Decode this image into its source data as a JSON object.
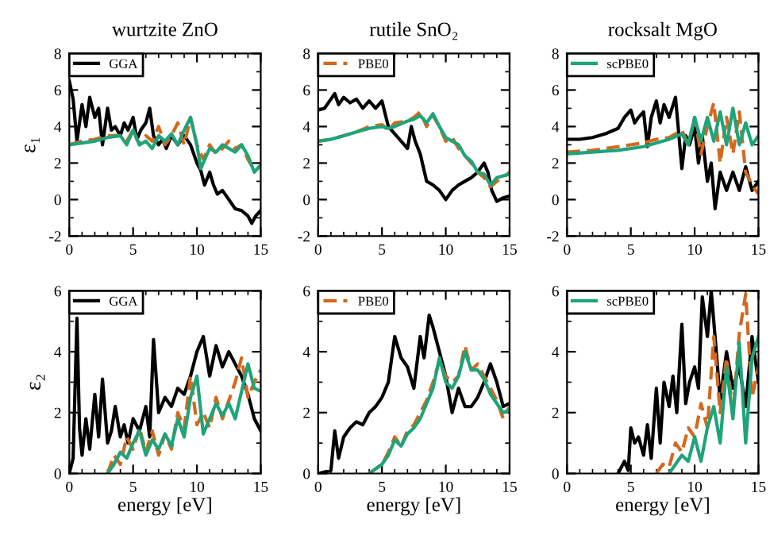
{
  "chart_data": [
    {
      "type": "line",
      "title": "wurtzite ZnO",
      "ylabel": "ε₁",
      "xlim": [
        0,
        15
      ],
      "ylim": [
        -2,
        8
      ],
      "xticks": [
        0,
        5,
        10,
        15
      ],
      "yticks": [
        -2,
        0,
        2,
        4,
        6,
        8
      ],
      "legend": "top left",
      "grid": false,
      "series": [
        {
          "name": "GGA",
          "color": "#000000",
          "line_style": "solid",
          "x": [
            0,
            0.3,
            0.6,
            1,
            1.3,
            1.6,
            2,
            2.3,
            2.6,
            3,
            3.3,
            3.6,
            4,
            4.3,
            4.6,
            5,
            5.3,
            5.6,
            6,
            6.3,
            6.6,
            7,
            7.3,
            7.6,
            8,
            8.5,
            9,
            9.5,
            10,
            10.3,
            10.6,
            11,
            11.3,
            11.6,
            12,
            12.5,
            13,
            13.5,
            14,
            14.3,
            14.6,
            15
          ],
          "values": [
            6.5,
            5.5,
            3.2,
            5.2,
            4.0,
            5.6,
            4.5,
            5.0,
            3.0,
            5.0,
            3.8,
            4.0,
            3.5,
            4.2,
            3.8,
            4.5,
            3.3,
            3.8,
            4.2,
            5.0,
            3.5,
            3.0,
            3.3,
            2.8,
            3.5,
            3.0,
            3.5,
            3.0,
            2.0,
            1.6,
            0.8,
            1.5,
            0.8,
            0.3,
            0.5,
            0,
            -0.5,
            -0.6,
            -0.9,
            -1.3,
            -0.9,
            -0.6
          ]
        },
        {
          "color": "#d2691e",
          "line_style": "dashed",
          "x": [
            0,
            1,
            2,
            3,
            4,
            4.5,
            5,
            5.5,
            6,
            6.5,
            7,
            7.5,
            8,
            8.5,
            9,
            9.5,
            10,
            10.5,
            11,
            11.5,
            12,
            12.5,
            13,
            13.5,
            14,
            14.5,
            15
          ],
          "values": [
            3.0,
            3.2,
            3.3,
            3.5,
            3.5,
            3.2,
            3.8,
            3.0,
            3.5,
            3.2,
            4.0,
            3.0,
            3.5,
            4.2,
            3.0,
            4.5,
            3.0,
            2.2,
            3.0,
            2.5,
            2.8,
            3.2,
            2.8,
            3.0,
            2.2,
            1.6,
            1.8
          ]
        },
        {
          "color": "#1fa37a",
          "line_style": "solid",
          "x": [
            0,
            1,
            2,
            3,
            4,
            4.5,
            5,
            5.5,
            6,
            6.5,
            7,
            7.5,
            8,
            8.5,
            9,
            9.5,
            10,
            10.3,
            11,
            11.5,
            12,
            12.5,
            13,
            13.5,
            14,
            14.5,
            15
          ],
          "values": [
            3.0,
            3.1,
            3.2,
            3.4,
            3.5,
            3.0,
            3.8,
            3.0,
            3.2,
            2.8,
            3.5,
            3.2,
            3.6,
            3.0,
            3.8,
            4.5,
            3.0,
            1.7,
            2.8,
            2.6,
            3.0,
            2.8,
            2.6,
            3.0,
            2.4,
            1.5,
            1.9
          ]
        }
      ]
    },
    {
      "type": "line",
      "title": "rutile SnO₂",
      "xlim": [
        0,
        15
      ],
      "ylim": [
        -2,
        8
      ],
      "xticks": [
        0,
        5,
        10,
        15
      ],
      "yticks": [
        -2,
        0,
        2,
        4,
        6,
        8
      ],
      "legend": "top left",
      "grid": false,
      "series": [
        {
          "color": "#000000",
          "line_style": "solid",
          "x": [
            0,
            0.5,
            1,
            1.3,
            1.6,
            2,
            2.5,
            3,
            3.5,
            4,
            4.5,
            5,
            5.5,
            6,
            6.5,
            7,
            7.3,
            7.6,
            8,
            8.5,
            9,
            9.5,
            10,
            10.5,
            11,
            11.5,
            12,
            12.5,
            13,
            13.3,
            13.6,
            14,
            14.5,
            15
          ],
          "values": [
            4.9,
            5.0,
            5.5,
            5.8,
            5.2,
            5.6,
            5.3,
            5.5,
            5.0,
            5.4,
            5.0,
            5.4,
            4.0,
            3.6,
            3.2,
            2.8,
            4.0,
            3.2,
            2.5,
            1.0,
            0.8,
            0.5,
            0,
            0.5,
            0.8,
            1.0,
            1.2,
            1.5,
            2.0,
            1.5,
            0.5,
            -0.1,
            0.1,
            0.2
          ]
        },
        {
          "name": "PBE0",
          "color": "#d2691e",
          "line_style": "dashed",
          "x": [
            0,
            1,
            2,
            3,
            4,
            5,
            5.5,
            6,
            7,
            7.5,
            8,
            8.5,
            9,
            9.5,
            10,
            10.5,
            11,
            11.5,
            12,
            12.5,
            13,
            13.5,
            14,
            14.5,
            15
          ],
          "values": [
            3.2,
            3.3,
            3.5,
            3.7,
            4.0,
            4.1,
            3.8,
            4.2,
            4.3,
            4.5,
            4.8,
            4.0,
            4.6,
            4.0,
            3.2,
            3.4,
            2.8,
            2.4,
            2.0,
            1.5,
            1.2,
            0.7,
            1.0,
            1.2,
            1.5
          ]
        },
        {
          "color": "#1fa37a",
          "line_style": "solid",
          "x": [
            0,
            1,
            2,
            3,
            4,
            5,
            5.5,
            6,
            7,
            7.5,
            8,
            8.5,
            9,
            9.5,
            10,
            10.5,
            11,
            11.5,
            12,
            12.5,
            13,
            13.5,
            14,
            14.5,
            15
          ],
          "values": [
            3.2,
            3.3,
            3.5,
            3.7,
            3.9,
            4.0,
            3.9,
            4.0,
            4.3,
            4.4,
            4.6,
            4.2,
            4.7,
            4.0,
            3.4,
            3.2,
            3.0,
            2.4,
            2.1,
            1.5,
            1.4,
            0.8,
            1.2,
            1.3,
            1.4
          ]
        }
      ]
    },
    {
      "type": "line",
      "title": "rocksalt MgO",
      "xlim": [
        0,
        15
      ],
      "ylim": [
        -2,
        8
      ],
      "xticks": [
        0,
        5,
        10,
        15
      ],
      "yticks": [
        -2,
        0,
        2,
        4,
        6,
        8
      ],
      "legend": "top left",
      "grid": false,
      "series": [
        {
          "color": "#000000",
          "line_style": "solid",
          "x": [
            0,
            1,
            2,
            3,
            4,
            4.5,
            5,
            5.3,
            5.6,
            6,
            6.3,
            6.6,
            7,
            7.3,
            7.6,
            8,
            8.5,
            9,
            9.3,
            9.6,
            10,
            10.3,
            10.6,
            11,
            11.3,
            11.6,
            12,
            12.5,
            13,
            13.5,
            14,
            14.5,
            15
          ],
          "values": [
            3.3,
            3.3,
            3.4,
            3.6,
            3.9,
            4.5,
            4.9,
            4.2,
            4.5,
            4.8,
            2.9,
            4.5,
            5.4,
            4.2,
            5.2,
            4.5,
            5.6,
            1.7,
            3.5,
            3.0,
            4.0,
            2.0,
            3.5,
            1.0,
            2.0,
            -0.5,
            1.5,
            0.5,
            1.5,
            0.5,
            1.8,
            0.5,
            1.0
          ]
        },
        {
          "color": "#d2691e",
          "line_style": "dashed",
          "x": [
            0,
            2,
            4,
            6,
            7,
            8,
            9,
            9.5,
            10,
            10.5,
            11,
            11.5,
            12,
            12.5,
            13,
            13.5,
            14,
            14.5,
            15
          ],
          "values": [
            2.6,
            2.7,
            2.9,
            3.1,
            3.3,
            3.4,
            3.8,
            3.0,
            4.5,
            2.5,
            4.0,
            5.3,
            2.0,
            4.5,
            2.5,
            4.8,
            1.5,
            0.8,
            0.3
          ]
        },
        {
          "name": "scPBE0",
          "color": "#1fa37a",
          "line_style": "solid",
          "x": [
            0,
            2,
            4,
            6,
            8,
            9,
            9.5,
            10,
            10.5,
            11,
            11.5,
            12,
            12.5,
            13,
            13.5,
            14,
            14.5,
            15
          ],
          "values": [
            2.5,
            2.6,
            2.7,
            2.9,
            3.3,
            3.6,
            3.0,
            4.5,
            3.2,
            4.5,
            3.2,
            4.8,
            3.0,
            5.0,
            3.0,
            4.2,
            3.0,
            3.5
          ]
        }
      ]
    },
    {
      "type": "line",
      "xlabel": "energy [eV]",
      "ylabel": "ε₂",
      "xlim": [
        0,
        15
      ],
      "ylim": [
        0,
        6
      ],
      "xticks": [
        0,
        5,
        10,
        15
      ],
      "yticks": [
        0,
        2,
        4,
        6
      ],
      "legend": "top left",
      "grid": false,
      "series": [
        {
          "name": "GGA",
          "color": "#000000",
          "line_style": "solid",
          "x": [
            0,
            0.3,
            0.6,
            0.8,
            1,
            1.3,
            1.6,
            2,
            2.3,
            2.6,
            3,
            3.3,
            3.6,
            4,
            4.3,
            4.6,
            5,
            5.5,
            6,
            6.3,
            6.6,
            7,
            7.5,
            8,
            8.5,
            9,
            9.5,
            10,
            10.5,
            11,
            11.5,
            12,
            12.5,
            13,
            13.5,
            14,
            14.5,
            15
          ],
          "values": [
            0,
            0.5,
            5.1,
            1.5,
            0.6,
            1.8,
            0.8,
            2.6,
            1.2,
            3.1,
            1.0,
            1.4,
            2.2,
            1.2,
            1.6,
            1.0,
            1.8,
            1.4,
            2.2,
            1.2,
            4.4,
            2.0,
            2.5,
            2.2,
            2.8,
            2.6,
            3.2,
            4.0,
            4.5,
            3.2,
            4.2,
            3.5,
            4.0,
            3.6,
            3.2,
            2.6,
            1.8,
            1.4
          ]
        },
        {
          "color": "#d2691e",
          "line_style": "dashed",
          "x": [
            3,
            3.5,
            4,
            4.5,
            5,
            5.5,
            6,
            6.5,
            7,
            7.5,
            8,
            8.5,
            9,
            9.5,
            10,
            10.5,
            11,
            11.5,
            12,
            12.5,
            13,
            13.5,
            14,
            14.5,
            15
          ],
          "values": [
            0,
            0.6,
            0.3,
            1.2,
            0.8,
            1.5,
            0.7,
            1.4,
            0.6,
            1.3,
            0.8,
            2.0,
            1.5,
            3.2,
            1.6,
            2.0,
            1.5,
            2.5,
            1.8,
            2.4,
            3.0,
            3.8,
            2.5,
            3.0,
            3.4
          ]
        },
        {
          "color": "#1fa37a",
          "line_style": "solid",
          "x": [
            3,
            3.5,
            4,
            4.5,
            5,
            5.5,
            6,
            6.5,
            7,
            7.5,
            8,
            8.5,
            9,
            9.5,
            10,
            10.5,
            11,
            11.5,
            12,
            12.5,
            13,
            13.5,
            14,
            14.5,
            15
          ],
          "values": [
            0,
            0.3,
            0.7,
            0.5,
            1.0,
            1.4,
            0.6,
            1.1,
            0.8,
            1.3,
            0.9,
            1.8,
            1.2,
            2.5,
            3.2,
            1.3,
            1.8,
            2.3,
            1.9,
            2.3,
            1.8,
            2.7,
            3.6,
            2.8,
            2.7
          ]
        }
      ]
    },
    {
      "type": "line",
      "xlabel": "energy [eV]",
      "xlim": [
        0,
        15
      ],
      "ylim": [
        0,
        6
      ],
      "xticks": [
        0,
        5,
        10,
        15
      ],
      "yticks": [
        0,
        2,
        4,
        6
      ],
      "legend": "top left",
      "grid": false,
      "series": [
        {
          "color": "#000000",
          "line_style": "solid",
          "x": [
            0,
            1,
            1.3,
            1.6,
            2,
            2.5,
            3,
            3.5,
            4,
            4.5,
            5,
            5.5,
            6,
            6.5,
            7,
            7.5,
            8,
            8.3,
            8.7,
            9,
            9.5,
            10,
            10.5,
            11,
            11.5,
            12,
            12.5,
            13,
            13.5,
            14,
            14.5,
            15
          ],
          "values": [
            0,
            0.1,
            1.4,
            0.5,
            1.2,
            1.5,
            1.7,
            1.6,
            2.0,
            2.2,
            2.5,
            3.0,
            4.5,
            3.8,
            3.5,
            2.8,
            4.5,
            3.8,
            5.2,
            4.8,
            4.0,
            3.2,
            2.0,
            2.8,
            2.2,
            2.2,
            2.5,
            3.0,
            3.6,
            3.0,
            2.2,
            2.3
          ]
        },
        {
          "name": "PBE0",
          "color": "#d2691e",
          "line_style": "dashed",
          "x": [
            4,
            5,
            5.5,
            6,
            6.5,
            7,
            7.5,
            8,
            8.5,
            9,
            9.5,
            10,
            10.5,
            11,
            11.5,
            12,
            12.5,
            13,
            13.5,
            14,
            14.5,
            15
          ],
          "values": [
            0,
            0.3,
            0.7,
            1.2,
            0.9,
            1.4,
            1.6,
            2.0,
            2.4,
            3.0,
            3.7,
            3.2,
            3.0,
            3.2,
            4.2,
            3.4,
            3.6,
            3.2,
            2.8,
            2.4,
            1.8,
            2.2
          ]
        },
        {
          "color": "#1fa37a",
          "line_style": "solid",
          "x": [
            4,
            5,
            5.5,
            6,
            6.5,
            7,
            7.5,
            8,
            8.5,
            9,
            9.5,
            10,
            10.5,
            11,
            11.5,
            12,
            12.5,
            13,
            13.5,
            14,
            14.5,
            15
          ],
          "values": [
            0,
            0.3,
            0.6,
            1.1,
            0.9,
            1.3,
            1.5,
            1.8,
            2.3,
            2.8,
            3.8,
            3.0,
            2.8,
            3.2,
            4.0,
            3.4,
            3.4,
            3.1,
            2.6,
            2.3,
            2.0,
            2.1
          ]
        }
      ]
    },
    {
      "type": "line",
      "xlabel": "energy [eV]",
      "xlim": [
        0,
        15
      ],
      "ylim": [
        0,
        6
      ],
      "xticks": [
        0,
        5,
        10,
        15
      ],
      "yticks": [
        0,
        2,
        4,
        6
      ],
      "legend": "top left",
      "grid": false,
      "series": [
        {
          "color": "#000000",
          "line_style": "solid",
          "x": [
            4,
            4.5,
            4.8,
            5,
            5.3,
            5.6,
            6,
            6.3,
            6.6,
            7,
            7.3,
            7.6,
            8,
            8.3,
            8.6,
            9,
            9.3,
            9.6,
            10,
            10.3,
            10.6,
            11,
            11.3,
            11.6,
            12,
            12.5,
            13,
            13.5,
            14,
            14.5,
            15
          ],
          "values": [
            0,
            0.4,
            0.1,
            1.5,
            1.0,
            1.2,
            0.6,
            1.6,
            0.5,
            2.8,
            1.0,
            3.0,
            2.2,
            3.2,
            2.0,
            4.9,
            2.3,
            3.0,
            3.5,
            2.8,
            5.8,
            4.5,
            6.0,
            4.5,
            2.4,
            4.0,
            2.8,
            3.5,
            2.2,
            4.5,
            3.0
          ]
        },
        {
          "color": "#d2691e",
          "line_style": "dashed",
          "x": [
            7,
            7.5,
            8,
            8.5,
            9,
            9.5,
            10,
            10.5,
            11,
            11.5,
            12,
            12.5,
            13,
            13.5,
            14,
            14.5,
            15
          ],
          "values": [
            0,
            0.3,
            0.2,
            1.0,
            0.7,
            1.5,
            1.2,
            2.3,
            1.5,
            4.5,
            2.0,
            3.8,
            2.0,
            4.6,
            5.9,
            2.5,
            3.5
          ]
        },
        {
          "name": "scPBE0",
          "color": "#1fa37a",
          "line_style": "solid",
          "x": [
            8,
            8.5,
            9,
            9.5,
            10,
            10.5,
            11,
            11.5,
            12,
            12.5,
            13,
            13.5,
            14,
            14.5,
            15
          ],
          "values": [
            0,
            0.3,
            0.6,
            0.4,
            1.2,
            0.4,
            1.5,
            2.2,
            1.0,
            3.5,
            1.8,
            4.3,
            1.0,
            3.8,
            4.5
          ]
        }
      ]
    }
  ]
}
